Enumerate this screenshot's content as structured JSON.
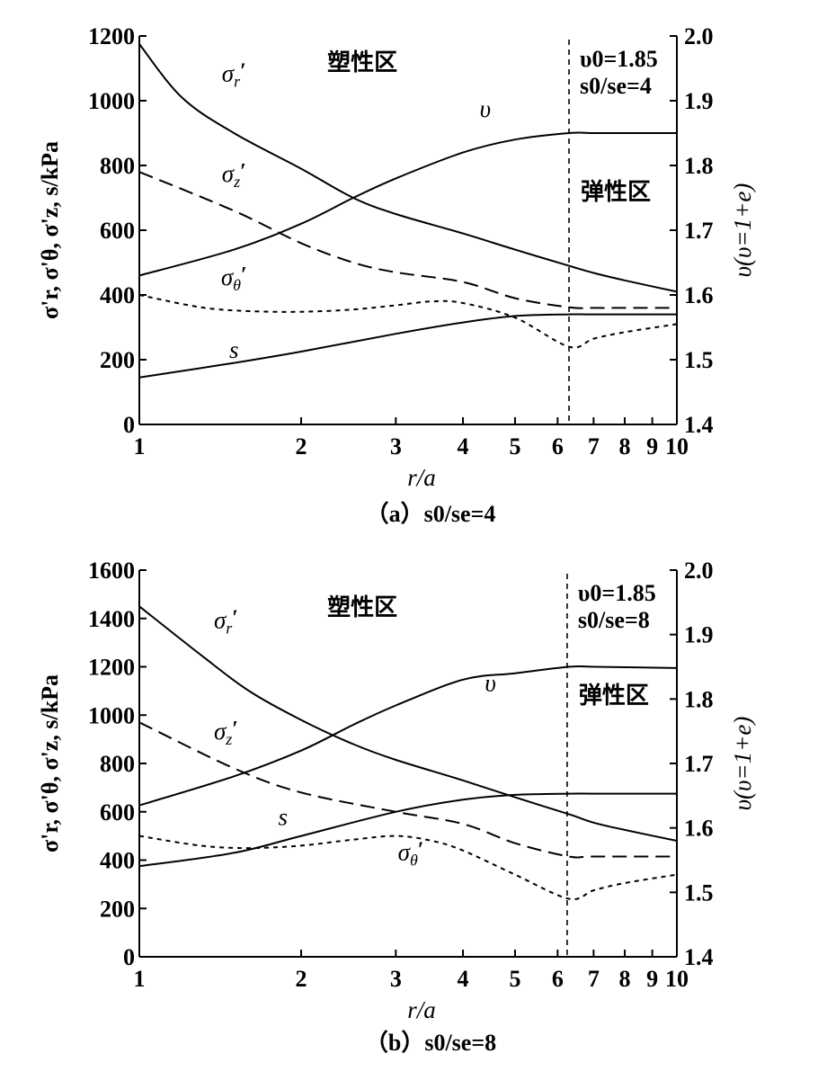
{
  "chart_data": [
    {
      "type": "line",
      "caption": "（a）s0/se=4",
      "x_scale": "log",
      "xlim": [
        1,
        10
      ],
      "xlabel": "r/a",
      "x_ticks": [
        "1",
        "2",
        "3",
        "4",
        "5",
        "6",
        "7",
        "8",
        "9",
        "10"
      ],
      "ylabel_left": "σ'r, σ'θ, σ'z, s/kPa",
      "ylim_left": [
        0,
        1200
      ],
      "y_ticks_left": [
        "0",
        "200",
        "400",
        "600",
        "800",
        "1000",
        "1200"
      ],
      "ylabel_right": "υ(υ=1+e)",
      "ylim_right": [
        1.4,
        2.0
      ],
      "y_ticks_right": [
        "1.4",
        "1.5",
        "1.6",
        "1.7",
        "1.8",
        "1.9",
        "2.0"
      ],
      "boundary_x": 6.3,
      "zone_plastic": "塑性区",
      "zone_elastic": "弹性区",
      "param_v0": "υ0=1.85",
      "param_ratio": "s0/se=4",
      "series": [
        {
          "name": "σ'r",
          "label": "σr'",
          "axis": "left",
          "style": "solid",
          "x": [
            1,
            1.2,
            1.5,
            2,
            2.5,
            3,
            4,
            5,
            6.3,
            7,
            8,
            10
          ],
          "y": [
            1175,
            1010,
            900,
            790,
            700,
            650,
            590,
            540,
            490,
            468,
            445,
            410
          ]
        },
        {
          "name": "σ'z",
          "label": "σz'",
          "axis": "left",
          "style": "dashed",
          "x": [
            1,
            1.5,
            2,
            2.5,
            3,
            4,
            5,
            6.3,
            7,
            8,
            10
          ],
          "y": [
            780,
            660,
            560,
            500,
            470,
            440,
            390,
            362,
            360,
            360,
            360
          ]
        },
        {
          "name": "σ'θ",
          "label": "σθ'",
          "axis": "left",
          "style": "dotted",
          "x": [
            1,
            1.3,
            1.6,
            2,
            2.5,
            3,
            3.5,
            4,
            5,
            6.3,
            7,
            8,
            10
          ],
          "y": [
            400,
            362,
            350,
            348,
            355,
            368,
            380,
            375,
            330,
            240,
            265,
            285,
            310
          ]
        },
        {
          "name": "s",
          "label": "s",
          "axis": "left",
          "style": "solid",
          "x": [
            1,
            1.5,
            2,
            3,
            4,
            5,
            6.3,
            7,
            10
          ],
          "y": [
            145,
            190,
            225,
            280,
            315,
            335,
            340,
            340,
            340
          ]
        },
        {
          "name": "υ",
          "label": "υ",
          "axis": "right",
          "style": "solid",
          "x": [
            1,
            1.5,
            2,
            2.5,
            3,
            4,
            5,
            6.3,
            7,
            8,
            10
          ],
          "y": [
            1.63,
            1.67,
            1.71,
            1.75,
            1.78,
            1.82,
            1.84,
            1.85,
            1.85,
            1.85,
            1.85
          ]
        }
      ],
      "annotations": [
        {
          "text": "σ",
          "sub": "r",
          "prime": "′",
          "x": 1.5,
          "y": 1060
        },
        {
          "text": "σ",
          "sub": "z",
          "prime": "′",
          "x": 1.5,
          "y": 750
        },
        {
          "text": "σ",
          "sub": "θ",
          "prime": "′",
          "x": 1.5,
          "y": 430
        },
        {
          "text": "s",
          "sub": "",
          "prime": "",
          "x": 1.5,
          "y": 205
        },
        {
          "text": "υ",
          "sub": "",
          "prime": "",
          "x": 4.4,
          "y": 950
        }
      ]
    },
    {
      "type": "line",
      "caption": "（b）s0/se=8",
      "x_scale": "log",
      "xlim": [
        1,
        10
      ],
      "xlabel": "r/a",
      "x_ticks": [
        "1",
        "2",
        "3",
        "4",
        "5",
        "6",
        "7",
        "8",
        "9",
        "10"
      ],
      "ylabel_left": "σ'r, σ'θ, σ'z, s/kPa",
      "ylim_left": [
        0,
        1600
      ],
      "y_ticks_left": [
        "0",
        "200",
        "400",
        "600",
        "800",
        "1000",
        "1200",
        "1400",
        "1600"
      ],
      "ylabel_right": "υ(υ=1+e)",
      "ylim_right": [
        1.4,
        2.0
      ],
      "y_ticks_right": [
        "1.4",
        "1.5",
        "1.6",
        "1.7",
        "1.8",
        "1.9",
        "2.0"
      ],
      "boundary_x": 6.25,
      "zone_plastic": "塑性区",
      "zone_elastic": "弹性区",
      "param_v0": "υ0=1.85",
      "param_ratio": "s0/se=8",
      "series": [
        {
          "name": "σ'r",
          "label": "σr'",
          "axis": "left",
          "style": "solid",
          "x": [
            1,
            1.3,
            1.6,
            2,
            2.5,
            3,
            4,
            5,
            6.3,
            7,
            8,
            10
          ],
          "y": [
            1450,
            1250,
            1100,
            980,
            880,
            815,
            730,
            660,
            590,
            555,
            525,
            480
          ]
        },
        {
          "name": "σ'z",
          "label": "σz'",
          "axis": "left",
          "style": "dashed",
          "x": [
            1,
            1.5,
            2,
            3,
            4,
            5,
            6.3,
            7,
            10
          ],
          "y": [
            970,
            780,
            680,
            600,
            550,
            470,
            415,
            415,
            415
          ]
        },
        {
          "name": "σ'θ",
          "label": "σθ'",
          "axis": "left",
          "style": "dotted",
          "x": [
            1,
            1.3,
            1.6,
            2,
            2.5,
            3,
            3.5,
            4,
            5,
            6.3,
            7,
            8,
            10
          ],
          "y": [
            500,
            460,
            450,
            460,
            485,
            500,
            480,
            440,
            340,
            240,
            275,
            305,
            340
          ]
        },
        {
          "name": "s",
          "label": "s",
          "axis": "left",
          "style": "solid",
          "x": [
            1,
            1.5,
            2,
            3,
            4,
            5,
            6.3,
            7,
            10
          ],
          "y": [
            375,
            430,
            500,
            600,
            650,
            670,
            675,
            675,
            675
          ]
        },
        {
          "name": "υ",
          "label": "υ",
          "axis": "right",
          "style": "solid",
          "x": [
            1,
            1.5,
            2,
            2.5,
            3,
            4,
            5,
            6.3,
            7,
            10
          ],
          "y": [
            1.635,
            1.68,
            1.72,
            1.76,
            1.79,
            1.83,
            1.84,
            1.85,
            1.85,
            1.848
          ]
        }
      ],
      "annotations": [
        {
          "text": "σ",
          "sub": "r",
          "prime": "′",
          "x": 1.45,
          "y": 1360
        },
        {
          "text": "σ",
          "sub": "z",
          "prime": "′",
          "x": 1.45,
          "y": 900
        },
        {
          "text": "σ",
          "sub": "θ",
          "prime": "′",
          "x": 3.2,
          "y": 400
        },
        {
          "text": "s",
          "sub": "",
          "prime": "",
          "x": 1.85,
          "y": 545
        },
        {
          "text": "υ",
          "sub": "",
          "prime": "",
          "x": 4.5,
          "y": 1100
        }
      ]
    }
  ]
}
